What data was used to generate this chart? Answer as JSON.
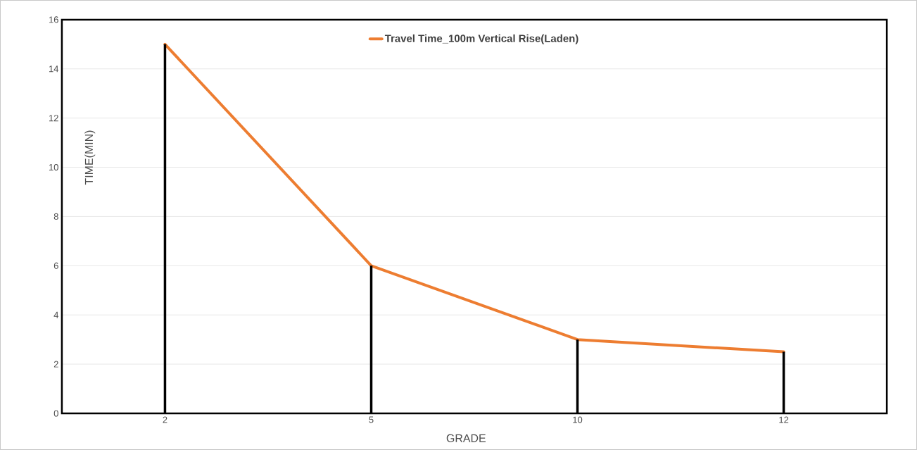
{
  "chart_data": {
    "type": "line",
    "xlabel": "GRADE",
    "ylabel": "TIME(MIN)",
    "categories": [
      "2",
      "5",
      "10",
      "12"
    ],
    "series": [
      {
        "name": "Travel Time_100m Vertical Rise(Laden)",
        "color": "#ed7d31",
        "values": [
          15,
          6,
          3,
          2.5
        ]
      },
      {
        "type": "bar",
        "color": "#000000",
        "values": [
          15,
          6,
          3,
          2.5
        ]
      }
    ],
    "ylim": [
      0,
      16
    ],
    "yticks": [
      0,
      2,
      4,
      6,
      8,
      10,
      12,
      14,
      16
    ],
    "grid": "y",
    "legend": "top"
  }
}
